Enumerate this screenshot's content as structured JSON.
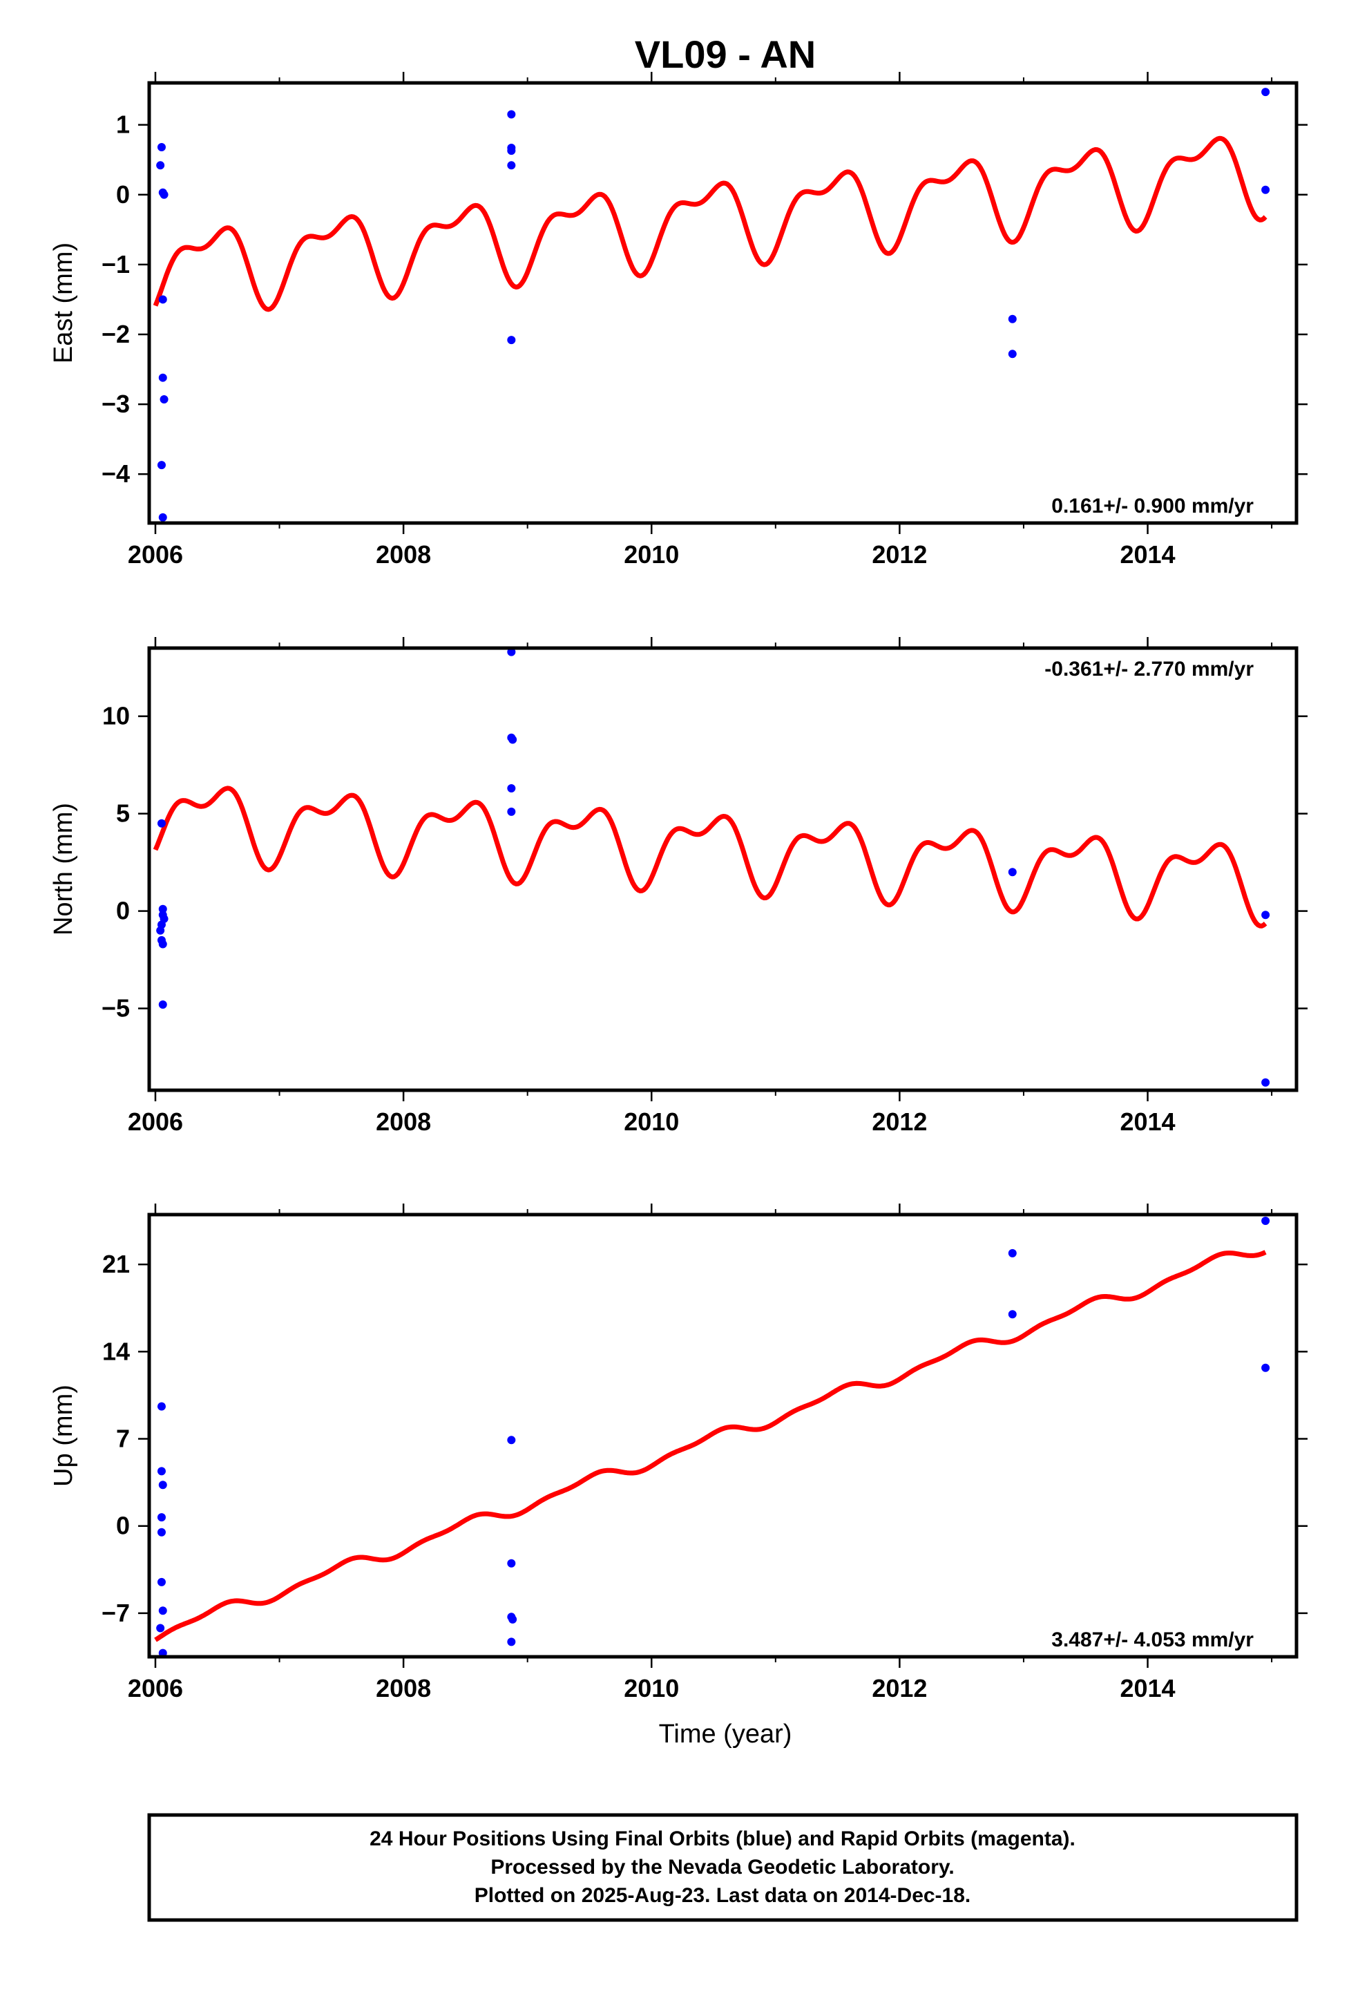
{
  "figure_title": "VL09 - AN",
  "x_axis_label": "Time (year)",
  "footer": {
    "line1": "24 Hour Positions Using Final Orbits (blue) and Rapid Orbits (magenta).",
    "line2": "Processed by the Nevada Geodetic Laboratory.",
    "line3": "Plotted on 2025-Aug-23. Last data on 2014-Dec-18."
  },
  "colors": {
    "data_points": "#0000ff",
    "model_fit": "#ff0000",
    "frame": "#000000"
  },
  "chart_data": [
    {
      "type": "scatter",
      "id": "east",
      "ylabel": "East (mm)",
      "rate_text": "0.161+/- 0.900 mm/yr",
      "rate_position": "bottom-right",
      "xlim": [
        2005.95,
        2015.2
      ],
      "ylim": [
        -4.7,
        1.6
      ],
      "xticks": [
        2006,
        2008,
        2010,
        2012,
        2014
      ],
      "yticks": [
        1,
        0,
        -1,
        -2,
        -3,
        -4
      ],
      "ytick_labels": [
        "1",
        "0",
        "−1",
        "−2",
        "−3",
        "−4"
      ],
      "grid": false,
      "points": [
        [
          2006.05,
          0.68
        ],
        [
          2006.04,
          0.42
        ],
        [
          2006.06,
          0.03
        ],
        [
          2006.07,
          0.0
        ],
        [
          2006.06,
          -1.5
        ],
        [
          2006.06,
          -2.62
        ],
        [
          2006.07,
          -2.93
        ],
        [
          2006.05,
          -3.87
        ],
        [
          2006.06,
          -4.62
        ],
        [
          2008.87,
          1.15
        ],
        [
          2008.87,
          0.67
        ],
        [
          2008.87,
          0.63
        ],
        [
          2008.87,
          0.42
        ],
        [
          2008.87,
          -2.08
        ],
        [
          2012.91,
          -1.78
        ],
        [
          2012.91,
          -2.28
        ],
        [
          2014.95,
          1.47
        ],
        [
          2014.95,
          0.07
        ]
      ],
      "model": {
        "start": 2006.0,
        "end": 2014.95,
        "offset": -1.05,
        "slope": 0.16,
        "annual_amp": 0.5,
        "annual_phase": -1.2,
        "semiannual_amp": 0.25,
        "semiannual_phase": -0.3
      }
    },
    {
      "type": "scatter",
      "id": "north",
      "ylabel": "North (mm)",
      "rate_text": "-0.361+/- 2.770 mm/yr",
      "rate_position": "top-right",
      "xlim": [
        2005.95,
        2015.2
      ],
      "ylim": [
        -9.2,
        13.5
      ],
      "xticks": [
        2006,
        2008,
        2010,
        2012,
        2014
      ],
      "yticks": [
        10,
        5,
        0,
        -5
      ],
      "ytick_labels": [
        "10",
        "5",
        "0",
        "−5"
      ],
      "grid": false,
      "points": [
        [
          2006.05,
          4.5
        ],
        [
          2006.06,
          0.1
        ],
        [
          2006.06,
          -0.2
        ],
        [
          2006.07,
          -0.4
        ],
        [
          2006.05,
          -0.7
        ],
        [
          2006.04,
          -1.0
        ],
        [
          2006.05,
          -1.5
        ],
        [
          2006.06,
          -1.7
        ],
        [
          2006.06,
          -4.8
        ],
        [
          2008.87,
          13.3
        ],
        [
          2008.87,
          8.9
        ],
        [
          2008.88,
          8.8
        ],
        [
          2008.87,
          6.3
        ],
        [
          2008.87,
          5.1
        ],
        [
          2012.91,
          2.0
        ],
        [
          2014.95,
          -0.2
        ],
        [
          2014.95,
          -8.8
        ]
      ],
      "model": {
        "start": 2006.0,
        "end": 2014.95,
        "offset": 4.9,
        "slope": -0.36,
        "annual_amp": 1.6,
        "annual_phase": -1.2,
        "semiannual_amp": 0.9,
        "semiannual_phase": -0.3
      }
    },
    {
      "type": "scatter",
      "id": "up",
      "ylabel": "Up (mm)",
      "rate_text": "3.487+/- 4.053 mm/yr",
      "rate_position": "bottom-right",
      "xlim": [
        2005.95,
        2015.2
      ],
      "ylim": [
        -10.5,
        25.0
      ],
      "xticks": [
        2006,
        2008,
        2010,
        2012,
        2014
      ],
      "yticks": [
        21,
        14,
        7,
        0,
        -7
      ],
      "ytick_labels": [
        "21",
        "14",
        "7",
        "0",
        "−7"
      ],
      "grid": false,
      "points": [
        [
          2006.05,
          9.6
        ],
        [
          2006.05,
          4.4
        ],
        [
          2006.06,
          3.3
        ],
        [
          2006.05,
          0.7
        ],
        [
          2006.05,
          -0.5
        ],
        [
          2006.05,
          -4.5
        ],
        [
          2006.06,
          -6.8
        ],
        [
          2006.04,
          -8.2
        ],
        [
          2006.06,
          -10.2
        ],
        [
          2008.87,
          6.9
        ],
        [
          2008.87,
          -3.0
        ],
        [
          2008.87,
          -7.3
        ],
        [
          2008.88,
          -7.5
        ],
        [
          2008.87,
          -9.3
        ],
        [
          2012.91,
          21.9
        ],
        [
          2012.91,
          17.0
        ],
        [
          2014.95,
          24.5
        ],
        [
          2014.95,
          12.7
        ]
      ],
      "model": {
        "start": 2006.0,
        "end": 2014.95,
        "offset": -8.7,
        "slope": 3.49,
        "annual_amp": 0.45,
        "annual_phase": -1.5,
        "semiannual_amp": 0.2,
        "semiannual_phase": 0.0
      }
    }
  ]
}
